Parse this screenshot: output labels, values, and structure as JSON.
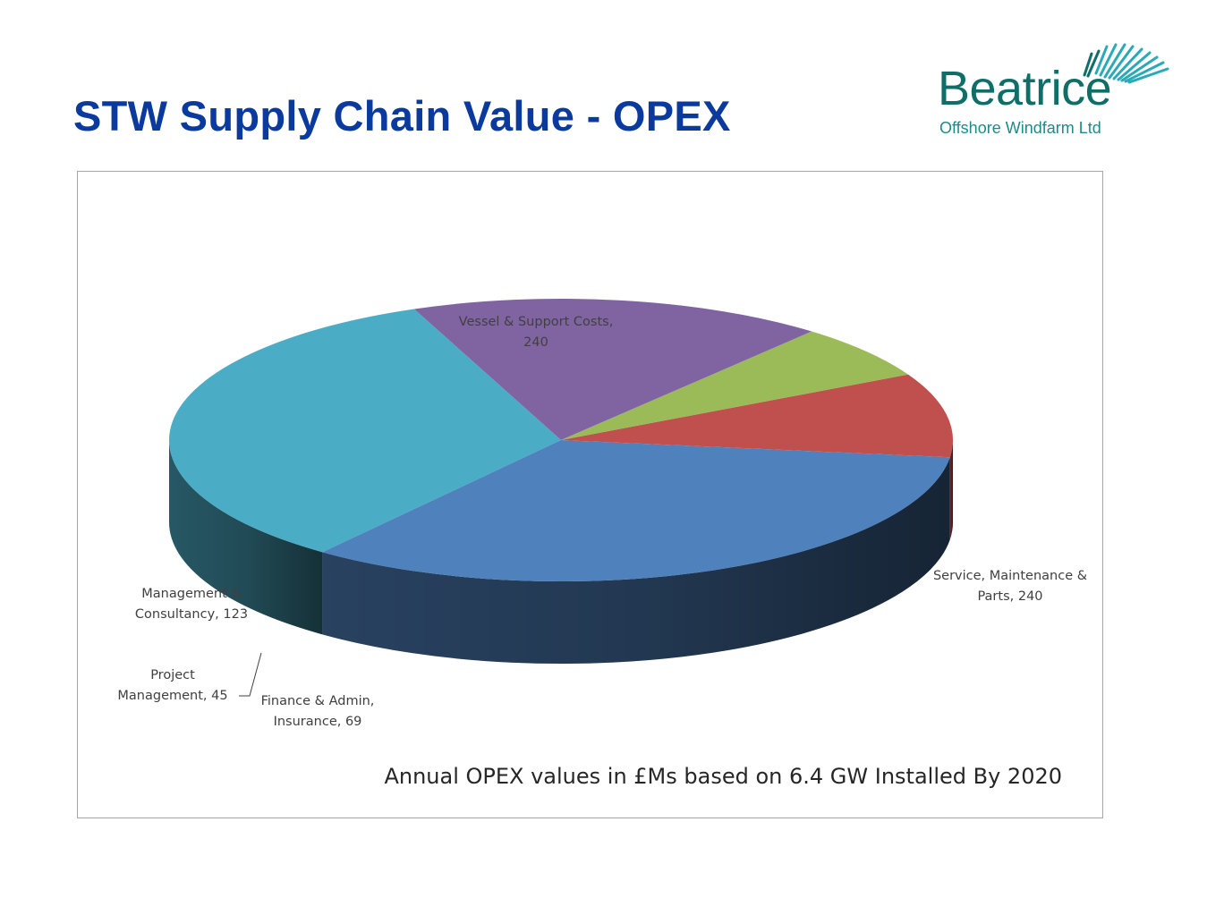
{
  "slide": {
    "title": "STW Supply Chain Value - OPEX"
  },
  "logo": {
    "name": "Beatrice",
    "subtitle": "Offshore Windfarm Ltd",
    "color": "#0f6e67"
  },
  "chart_data": {
    "type": "pie",
    "style": "3d",
    "caption": "Annual OPEX values in £Ms based on 6.4 GW Installed By 2020",
    "slices": [
      {
        "name": "Vessel & Support Costs",
        "value": 240,
        "color": "#4bacc6",
        "label_lines": [
          "Vessel & Support Costs,",
          "240"
        ]
      },
      {
        "name": "Service, Maintenance & Parts",
        "value": 240,
        "color": "#4f81bd",
        "label_lines": [
          "Service, Maintenance &",
          "Parts, 240"
        ]
      },
      {
        "name": "Finance & Admin, Insurance",
        "value": 69,
        "color": "#c0504d",
        "label_lines": [
          "Finance & Admin,",
          "Insurance, 69"
        ]
      },
      {
        "name": "Project Management",
        "value": 45,
        "color": "#9bbb59",
        "label_lines": [
          "Project",
          "Management, 45"
        ]
      },
      {
        "name": "Management & Consultancy",
        "value": 123,
        "color": "#8064a2",
        "label_lines": [
          "Management &",
          "Consultancy, 123"
        ]
      }
    ]
  }
}
